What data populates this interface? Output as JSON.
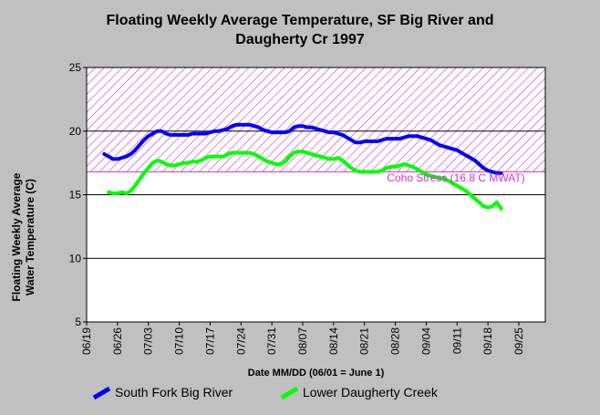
{
  "title_line1": "Floating Weekly Average Temperature, SF Big River and",
  "title_line2": "Daugherty Cr 1997",
  "ylabel_line1": "Floating Weekly Average",
  "ylabel_line2": "Water Temperature (C)",
  "xlabel": "Date MM/DD (06/01 = June 1)",
  "threshold_label": "Coho Stress (16.8 C MWAT)",
  "colors": {
    "background": "#c0c0c0",
    "plot_background": "#ffffff",
    "stress_hatch": "#cc33cc",
    "south_fork": "#0000ff",
    "daugherty": "#00ff00"
  },
  "chart_data": {
    "type": "line",
    "title": "Floating Weekly Average Temperature, SF Big River and Daugherty Cr 1997",
    "xlabel": "Date MM/DD (06/01 = June 1)",
    "ylabel": "Floating Weekly Average Water Temperature (C)",
    "xlim": [
      "06/19",
      "10/01"
    ],
    "ylim": [
      5,
      25
    ],
    "x_ticks": [
      "06/19",
      "06/26",
      "07/03",
      "07/10",
      "07/17",
      "07/24",
      "07/31",
      "08/07",
      "08/14",
      "08/21",
      "08/28",
      "09/04",
      "09/11",
      "09/18",
      "09/25"
    ],
    "y_ticks": [
      5,
      10,
      15,
      20,
      25
    ],
    "grid": "horizontal",
    "legend_position": "bottom",
    "stress_zone": {
      "from": 16.8,
      "to": 25,
      "label": "Coho Stress (16.8 C MWAT)"
    },
    "series": [
      {
        "name": "South Fork Big River",
        "color": "#0000ff",
        "points": [
          [
            "06/23",
            18.2
          ],
          [
            "06/24",
            18.0
          ],
          [
            "06/25",
            17.8
          ],
          [
            "06/26",
            17.8
          ],
          [
            "06/27",
            17.9
          ],
          [
            "06/28",
            18.0
          ],
          [
            "06/29",
            18.2
          ],
          [
            "06/30",
            18.5
          ],
          [
            "07/01",
            18.9
          ],
          [
            "07/02",
            19.3
          ],
          [
            "07/03",
            19.6
          ],
          [
            "07/04",
            19.8
          ],
          [
            "07/05",
            20.0
          ],
          [
            "07/06",
            20.0
          ],
          [
            "07/07",
            19.8
          ],
          [
            "07/08",
            19.7
          ],
          [
            "07/09",
            19.7
          ],
          [
            "07/10",
            19.7
          ],
          [
            "07/11",
            19.7
          ],
          [
            "07/12",
            19.7
          ],
          [
            "07/13",
            19.8
          ],
          [
            "07/14",
            19.8
          ],
          [
            "07/15",
            19.8
          ],
          [
            "07/16",
            19.8
          ],
          [
            "07/17",
            19.9
          ],
          [
            "07/18",
            20.0
          ],
          [
            "07/19",
            20.0
          ],
          [
            "07/20",
            20.1
          ],
          [
            "07/21",
            20.2
          ],
          [
            "07/22",
            20.4
          ],
          [
            "07/23",
            20.5
          ],
          [
            "07/24",
            20.5
          ],
          [
            "07/25",
            20.5
          ],
          [
            "07/26",
            20.5
          ],
          [
            "07/27",
            20.4
          ],
          [
            "07/28",
            20.3
          ],
          [
            "07/29",
            20.1
          ],
          [
            "07/30",
            20.0
          ],
          [
            "07/31",
            19.9
          ],
          [
            "08/01",
            19.9
          ],
          [
            "08/02",
            19.9
          ],
          [
            "08/03",
            19.9
          ],
          [
            "08/04",
            20.0
          ],
          [
            "08/05",
            20.3
          ],
          [
            "08/06",
            20.4
          ],
          [
            "08/07",
            20.4
          ],
          [
            "08/08",
            20.3
          ],
          [
            "08/09",
            20.3
          ],
          [
            "08/10",
            20.2
          ],
          [
            "08/11",
            20.1
          ],
          [
            "08/12",
            20.0
          ],
          [
            "08/13",
            19.9
          ],
          [
            "08/14",
            19.9
          ],
          [
            "08/15",
            19.8
          ],
          [
            "08/16",
            19.7
          ],
          [
            "08/17",
            19.5
          ],
          [
            "08/18",
            19.3
          ],
          [
            "08/19",
            19.1
          ],
          [
            "08/20",
            19.1
          ],
          [
            "08/21",
            19.2
          ],
          [
            "08/22",
            19.2
          ],
          [
            "08/23",
            19.2
          ],
          [
            "08/24",
            19.2
          ],
          [
            "08/25",
            19.3
          ],
          [
            "08/26",
            19.4
          ],
          [
            "08/27",
            19.4
          ],
          [
            "08/28",
            19.4
          ],
          [
            "08/29",
            19.4
          ],
          [
            "08/30",
            19.5
          ],
          [
            "08/31",
            19.6
          ],
          [
            "09/01",
            19.6
          ],
          [
            "09/02",
            19.6
          ],
          [
            "09/03",
            19.5
          ],
          [
            "09/04",
            19.4
          ],
          [
            "09/05",
            19.3
          ],
          [
            "09/06",
            19.1
          ],
          [
            "09/07",
            18.9
          ],
          [
            "09/08",
            18.8
          ],
          [
            "09/09",
            18.7
          ],
          [
            "09/10",
            18.6
          ],
          [
            "09/11",
            18.5
          ],
          [
            "09/12",
            18.3
          ],
          [
            "09/13",
            18.1
          ],
          [
            "09/14",
            17.9
          ],
          [
            "09/15",
            17.7
          ],
          [
            "09/16",
            17.4
          ],
          [
            "09/17",
            17.1
          ],
          [
            "09/18",
            16.9
          ],
          [
            "09/19",
            16.8
          ],
          [
            "09/20",
            16.7
          ],
          [
            "09/21",
            16.7
          ]
        ]
      },
      {
        "name": "Lower Daugherty Creek",
        "color": "#00ff00",
        "points": [
          [
            "06/24",
            15.2
          ],
          [
            "06/25",
            15.1
          ],
          [
            "06/26",
            15.1
          ],
          [
            "06/27",
            15.2
          ],
          [
            "06/28",
            15.1
          ],
          [
            "06/29",
            15.3
          ],
          [
            "06/30",
            15.7
          ],
          [
            "07/01",
            16.2
          ],
          [
            "07/02",
            16.7
          ],
          [
            "07/03",
            17.1
          ],
          [
            "07/04",
            17.5
          ],
          [
            "07/05",
            17.7
          ],
          [
            "07/06",
            17.6
          ],
          [
            "07/07",
            17.4
          ],
          [
            "07/08",
            17.3
          ],
          [
            "07/09",
            17.3
          ],
          [
            "07/10",
            17.4
          ],
          [
            "07/11",
            17.5
          ],
          [
            "07/12",
            17.5
          ],
          [
            "07/13",
            17.6
          ],
          [
            "07/14",
            17.6
          ],
          [
            "07/15",
            17.7
          ],
          [
            "07/16",
            17.9
          ],
          [
            "07/17",
            18.0
          ],
          [
            "07/18",
            18.0
          ],
          [
            "07/19",
            18.0
          ],
          [
            "07/20",
            18.0
          ],
          [
            "07/21",
            18.2
          ],
          [
            "07/22",
            18.3
          ],
          [
            "07/23",
            18.3
          ],
          [
            "07/24",
            18.3
          ],
          [
            "07/25",
            18.3
          ],
          [
            "07/26",
            18.3
          ],
          [
            "07/27",
            18.2
          ],
          [
            "07/28",
            18.0
          ],
          [
            "07/29",
            17.8
          ],
          [
            "07/30",
            17.6
          ],
          [
            "07/31",
            17.5
          ],
          [
            "08/01",
            17.4
          ],
          [
            "08/02",
            17.4
          ],
          [
            "08/03",
            17.6
          ],
          [
            "08/04",
            18.0
          ],
          [
            "08/05",
            18.3
          ],
          [
            "08/06",
            18.4
          ],
          [
            "08/07",
            18.4
          ],
          [
            "08/08",
            18.3
          ],
          [
            "08/09",
            18.2
          ],
          [
            "08/10",
            18.1
          ],
          [
            "08/11",
            18.0
          ],
          [
            "08/12",
            17.9
          ],
          [
            "08/13",
            17.8
          ],
          [
            "08/14",
            17.8
          ],
          [
            "08/15",
            17.9
          ],
          [
            "08/16",
            17.7
          ],
          [
            "08/17",
            17.4
          ],
          [
            "08/18",
            17.1
          ],
          [
            "08/19",
            16.9
          ],
          [
            "08/20",
            16.8
          ],
          [
            "08/21",
            16.8
          ],
          [
            "08/22",
            16.8
          ],
          [
            "08/23",
            16.8
          ],
          [
            "08/24",
            16.8
          ],
          [
            "08/25",
            16.9
          ],
          [
            "08/26",
            17.1
          ],
          [
            "08/27",
            17.2
          ],
          [
            "08/28",
            17.2
          ],
          [
            "08/29",
            17.3
          ],
          [
            "08/30",
            17.4
          ],
          [
            "08/31",
            17.3
          ],
          [
            "09/01",
            17.2
          ],
          [
            "09/02",
            17.0
          ],
          [
            "09/03",
            16.8
          ],
          [
            "09/04",
            16.6
          ],
          [
            "09/05",
            16.5
          ],
          [
            "09/06",
            16.4
          ],
          [
            "09/07",
            16.3
          ],
          [
            "09/08",
            16.3
          ],
          [
            "09/09",
            16.1
          ],
          [
            "09/10",
            15.9
          ],
          [
            "09/11",
            15.7
          ],
          [
            "09/12",
            15.5
          ],
          [
            "09/13",
            15.3
          ],
          [
            "09/14",
            15.0
          ],
          [
            "09/15",
            14.7
          ],
          [
            "09/16",
            14.4
          ],
          [
            "09/17",
            14.1
          ],
          [
            "09/18",
            14.0
          ],
          [
            "09/19",
            14.1
          ],
          [
            "09/20",
            14.4
          ],
          [
            "09/21",
            13.9
          ]
        ]
      }
    ]
  }
}
